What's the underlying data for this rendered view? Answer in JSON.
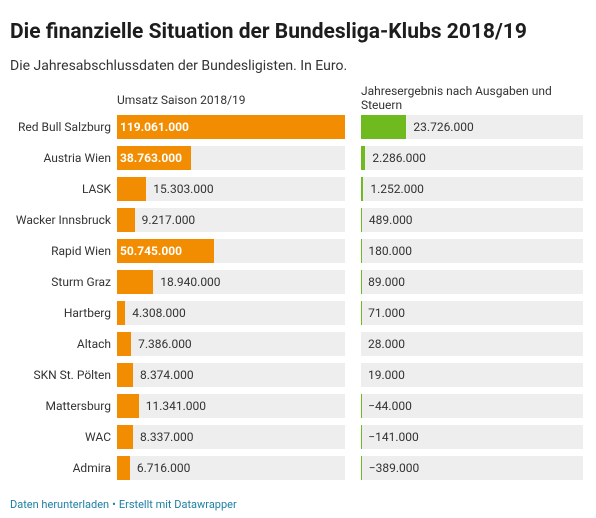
{
  "chart_data": {
    "type": "bar",
    "title": "Die finanzielle Situation der Bundesliga-Klubs 2018/19",
    "subtitle": "Die Jahresabschlussdaten der Bundesligisten. In Euro.",
    "categories": [
      "Red Bull Salzburg",
      "Austria Wien",
      "LASK",
      "Wacker Innsbruck",
      "Rapid Wien",
      "Sturm Graz",
      "Hartberg",
      "Altach",
      "SKN St. Pölten",
      "Mattersburg",
      "WAC",
      "Admira"
    ],
    "series": [
      {
        "name": "Umsatz Saison 2018/19",
        "color": "#f28c00",
        "values": [
          119061000,
          38763000,
          15303000,
          9217000,
          50745000,
          18940000,
          4308000,
          7386000,
          8374000,
          11341000,
          8337000,
          6716000
        ],
        "value_labels": [
          "119.061.000",
          "38.763.000",
          "15.303.000",
          "9.217.000",
          "50.745.000",
          "18.940.000",
          "4.308.000",
          "7.386.000",
          "8.374.000",
          "11.341.000",
          "8.337.000",
          "6.716.000"
        ]
      },
      {
        "name": "Jahresergebnis nach Ausgaben und Steuern",
        "color": "#6fba1e",
        "values": [
          23726000,
          2286000,
          1252000,
          489000,
          180000,
          89000,
          71000,
          28000,
          19000,
          -44000,
          -141000,
          -389000
        ],
        "value_labels": [
          "23.726.000",
          "2.286.000",
          "1.252.000",
          "489.000",
          "180.000",
          "89.000",
          "71.000",
          "28.000",
          "19.000",
          "−44.000",
          "−141.000",
          "−389.000"
        ]
      }
    ],
    "footer": [
      "Daten herunterladen",
      "•",
      "Erstellt mit Datawrapper"
    ]
  }
}
